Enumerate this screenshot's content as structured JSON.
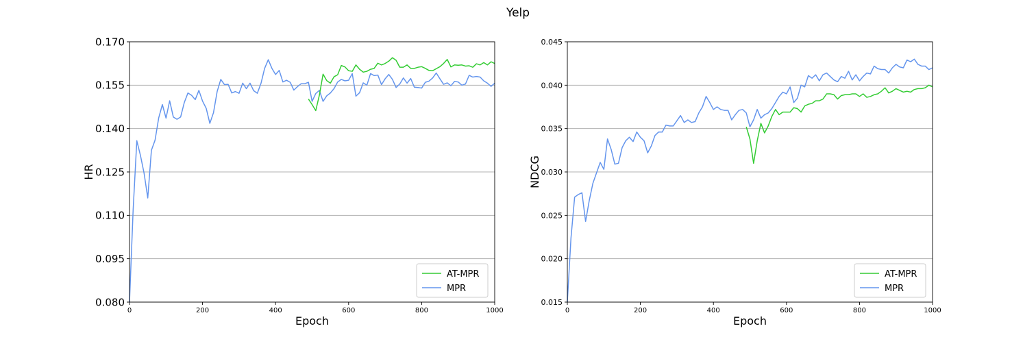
{
  "figure_title": "Yelp",
  "colors": {
    "at_mpr": "#33cc33",
    "mpr": "#6495ed",
    "grid": "#b0b0b0"
  },
  "chart_data": [
    {
      "type": "line",
      "title": "",
      "xlabel": "Epoch",
      "ylabel": "HR",
      "xlim": [
        0,
        1000
      ],
      "ylim": [
        0.08,
        0.17
      ],
      "xticks": [
        0,
        200,
        400,
        600,
        800,
        1000
      ],
      "xtick_labels": [
        "0",
        "200",
        "400",
        "600",
        "800",
        "1000"
      ],
      "yticks": [
        0.08,
        0.095,
        0.11,
        0.125,
        0.14,
        0.155,
        0.17
      ],
      "ytick_labels": [
        "0.080",
        "0.095",
        "0.110",
        "0.125",
        "0.140",
        "0.155",
        "0.170"
      ],
      "grid": "horizontal",
      "legend_position": "lower-right",
      "series": [
        {
          "name": "AT-MPR",
          "color": "#33cc33",
          "x": [
            490,
            500,
            510,
            520,
            530,
            540,
            550,
            560,
            570,
            580,
            590,
            600,
            610,
            620,
            630,
            640,
            650,
            660,
            670,
            680,
            690,
            700,
            710,
            720,
            730,
            740,
            750,
            760,
            770,
            780,
            790,
            800,
            810,
            820,
            830,
            840,
            850,
            860,
            870,
            880,
            890,
            900,
            910,
            920,
            930,
            940,
            950,
            960,
            970,
            980,
            990,
            1000
          ],
          "y": [
            0.1502,
            0.1483,
            0.1462,
            0.1516,
            0.1588,
            0.1566,
            0.1557,
            0.1579,
            0.1586,
            0.1618,
            0.1613,
            0.16,
            0.1598,
            0.162,
            0.1605,
            0.1595,
            0.1598,
            0.1605,
            0.1608,
            0.1626,
            0.162,
            0.1625,
            0.1633,
            0.1645,
            0.1636,
            0.1612,
            0.1612,
            0.162,
            0.1608,
            0.1608,
            0.1612,
            0.1614,
            0.1608,
            0.1601,
            0.16,
            0.1607,
            0.1614,
            0.1625,
            0.1639,
            0.1613,
            0.162,
            0.1619,
            0.162,
            0.1616,
            0.1617,
            0.1612,
            0.1624,
            0.162,
            0.1628,
            0.162,
            0.1631,
            0.1625
          ]
        },
        {
          "name": "MPR",
          "color": "#6495ed",
          "x": [
            0,
            10,
            20,
            30,
            40,
            50,
            60,
            70,
            80,
            90,
            100,
            110,
            120,
            130,
            140,
            150,
            160,
            170,
            180,
            190,
            200,
            210,
            220,
            230,
            240,
            250,
            260,
            270,
            280,
            290,
            300,
            310,
            320,
            330,
            340,
            350,
            360,
            370,
            380,
            390,
            400,
            410,
            420,
            430,
            440,
            450,
            460,
            470,
            480,
            490,
            500,
            510,
            520,
            530,
            540,
            550,
            560,
            570,
            580,
            590,
            600,
            610,
            620,
            630,
            640,
            650,
            660,
            670,
            680,
            690,
            700,
            710,
            720,
            730,
            740,
            750,
            760,
            770,
            780,
            790,
            800,
            810,
            820,
            830,
            840,
            850,
            860,
            870,
            880,
            890,
            900,
            910,
            920,
            930,
            940,
            950,
            960,
            970,
            980,
            990,
            1000
          ],
          "y": [
            0.08,
            0.112,
            0.1358,
            0.1307,
            0.1245,
            0.116,
            0.1325,
            0.136,
            0.1437,
            0.1483,
            0.1436,
            0.1496,
            0.144,
            0.1432,
            0.144,
            0.149,
            0.1523,
            0.1515,
            0.15,
            0.1532,
            0.1495,
            0.147,
            0.1418,
            0.1455,
            0.1528,
            0.157,
            0.1552,
            0.1553,
            0.1523,
            0.1528,
            0.1522,
            0.1557,
            0.1538,
            0.1557,
            0.1531,
            0.1522,
            0.1556,
            0.1608,
            0.1638,
            0.1608,
            0.1587,
            0.1601,
            0.1561,
            0.1567,
            0.156,
            0.1533,
            0.1545,
            0.1555,
            0.1555,
            0.156,
            0.1494,
            0.1521,
            0.1532,
            0.1494,
            0.1513,
            0.1523,
            0.1538,
            0.1561,
            0.157,
            0.1565,
            0.1567,
            0.159,
            0.1512,
            0.1524,
            0.1558,
            0.155,
            0.159,
            0.1583,
            0.1585,
            0.1552,
            0.1572,
            0.1587,
            0.157,
            0.1542,
            0.1554,
            0.1575,
            0.1557,
            0.1573,
            0.1543,
            0.1542,
            0.154,
            0.156,
            0.1564,
            0.1575,
            0.1592,
            0.1572,
            0.1553,
            0.1558,
            0.1548,
            0.1563,
            0.1561,
            0.155,
            0.1554,
            0.1584,
            0.1578,
            0.158,
            0.1578,
            0.1565,
            0.1557,
            0.1546,
            0.1557
          ]
        }
      ]
    },
    {
      "type": "line",
      "title": "",
      "xlabel": "Epoch",
      "ylabel": "NDCG",
      "xlim": [
        0,
        1000
      ],
      "ylim": [
        0.015,
        0.045
      ],
      "xticks": [
        0,
        200,
        400,
        600,
        800,
        1000
      ],
      "xtick_labels": [
        "0",
        "200",
        "400",
        "600",
        "800",
        "1000"
      ],
      "yticks": [
        0.015,
        0.02,
        0.025,
        0.03,
        0.035,
        0.04,
        0.045
      ],
      "ytick_labels": [
        "0.015",
        "0.020",
        "0.025",
        "0.030",
        "0.035",
        "0.040",
        "0.045"
      ],
      "grid": "horizontal",
      "legend_position": "lower-right",
      "series": [
        {
          "name": "AT-MPR",
          "color": "#33cc33",
          "x": [
            490,
            500,
            510,
            520,
            530,
            540,
            550,
            560,
            570,
            580,
            590,
            600,
            610,
            620,
            630,
            640,
            650,
            660,
            670,
            680,
            690,
            700,
            710,
            720,
            730,
            740,
            750,
            760,
            770,
            780,
            790,
            800,
            810,
            820,
            830,
            840,
            850,
            860,
            870,
            880,
            890,
            900,
            910,
            920,
            930,
            940,
            950,
            960,
            970,
            980,
            990,
            1000
          ],
          "y": [
            0.0352,
            0.0338,
            0.031,
            0.0336,
            0.0356,
            0.0345,
            0.0353,
            0.0364,
            0.0372,
            0.0366,
            0.0369,
            0.0369,
            0.0369,
            0.0374,
            0.0373,
            0.0369,
            0.0376,
            0.0378,
            0.0379,
            0.0382,
            0.0382,
            0.0384,
            0.039,
            0.039,
            0.0389,
            0.0384,
            0.0388,
            0.0389,
            0.0389,
            0.039,
            0.039,
            0.0387,
            0.039,
            0.0386,
            0.0387,
            0.0389,
            0.039,
            0.0393,
            0.0397,
            0.0391,
            0.0393,
            0.0396,
            0.0394,
            0.0392,
            0.0393,
            0.0392,
            0.0395,
            0.0396,
            0.0396,
            0.0397,
            0.04,
            0.0398
          ]
        },
        {
          "name": "MPR",
          "color": "#6495ed",
          "x": [
            0,
            10,
            20,
            30,
            40,
            50,
            60,
            70,
            80,
            90,
            100,
            110,
            120,
            130,
            140,
            150,
            160,
            170,
            180,
            190,
            200,
            210,
            220,
            230,
            240,
            250,
            260,
            270,
            280,
            290,
            300,
            310,
            320,
            330,
            340,
            350,
            360,
            370,
            380,
            390,
            400,
            410,
            420,
            430,
            440,
            450,
            460,
            470,
            480,
            490,
            500,
            510,
            520,
            530,
            540,
            550,
            560,
            570,
            580,
            590,
            600,
            610,
            620,
            630,
            640,
            650,
            660,
            670,
            680,
            690,
            700,
            710,
            720,
            730,
            740,
            750,
            760,
            770,
            780,
            790,
            800,
            810,
            820,
            830,
            840,
            850,
            860,
            870,
            880,
            890,
            900,
            910,
            920,
            930,
            940,
            950,
            960,
            970,
            980,
            990,
            1000
          ],
          "y": [
            0.015,
            0.0224,
            0.0271,
            0.0274,
            0.0276,
            0.0243,
            0.0267,
            0.0287,
            0.0299,
            0.0311,
            0.0303,
            0.0338,
            0.0326,
            0.0309,
            0.031,
            0.0328,
            0.0336,
            0.034,
            0.0335,
            0.0346,
            0.034,
            0.0336,
            0.0322,
            0.033,
            0.0342,
            0.0346,
            0.0346,
            0.0354,
            0.0353,
            0.0353,
            0.0359,
            0.0365,
            0.0357,
            0.036,
            0.0357,
            0.0358,
            0.0368,
            0.0375,
            0.0387,
            0.038,
            0.0372,
            0.0375,
            0.0372,
            0.0371,
            0.0371,
            0.036,
            0.0366,
            0.0371,
            0.0372,
            0.0368,
            0.0352,
            0.036,
            0.0372,
            0.0362,
            0.0366,
            0.0368,
            0.0373,
            0.038,
            0.0387,
            0.0392,
            0.039,
            0.0398,
            0.038,
            0.0385,
            0.04,
            0.0398,
            0.0411,
            0.0408,
            0.0412,
            0.0405,
            0.0412,
            0.0414,
            0.041,
            0.0406,
            0.0404,
            0.041,
            0.0408,
            0.0416,
            0.0406,
            0.0412,
            0.0405,
            0.041,
            0.0414,
            0.0413,
            0.0422,
            0.0419,
            0.0418,
            0.0418,
            0.0414,
            0.042,
            0.0424,
            0.0421,
            0.042,
            0.0429,
            0.0427,
            0.043,
            0.0424,
            0.0422,
            0.0422,
            0.0418,
            0.042
          ]
        }
      ]
    }
  ]
}
